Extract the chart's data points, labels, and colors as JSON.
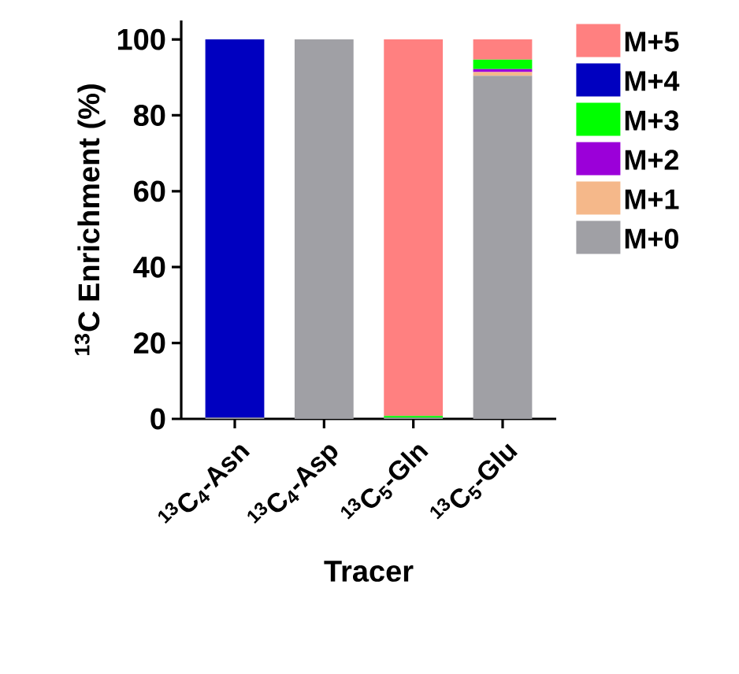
{
  "chart_data": {
    "type": "bar",
    "stacked": true,
    "categories": [
      "$^{13}$C$_{4}$-Asn",
      "$^{13}$C$_{4}$-Asp",
      "$^{13}$C$_{5}$-Gln",
      "$^{13}$C$_{5}$-Glu"
    ],
    "series": [
      {
        "name": "M+0",
        "color": "#a0a0a5",
        "values": [
          0.3,
          100,
          0.3,
          90.4
        ]
      },
      {
        "name": "M+1",
        "color": "#f5b88a",
        "values": [
          0,
          0,
          0,
          1.0
        ]
      },
      {
        "name": "M+2",
        "color": "#9b00d9",
        "values": [
          0,
          0,
          0,
          0.8
        ]
      },
      {
        "name": "M+3",
        "color": "#00ff00",
        "values": [
          0,
          0,
          0.5,
          2.5
        ]
      },
      {
        "name": "M+4",
        "color": "#0000c0",
        "values": [
          99.7,
          0,
          0,
          0
        ]
      },
      {
        "name": "M+5",
        "color": "#ff8080",
        "values": [
          0,
          0,
          99.2,
          5.3
        ]
      }
    ],
    "xlabel": "Tracer",
    "ylabel": "$^{13}$C Enrichment (%)",
    "ylim": [
      0,
      105
    ],
    "yticks": [
      0,
      20,
      40,
      60,
      80,
      100
    ],
    "grid": false,
    "legend": "right"
  }
}
